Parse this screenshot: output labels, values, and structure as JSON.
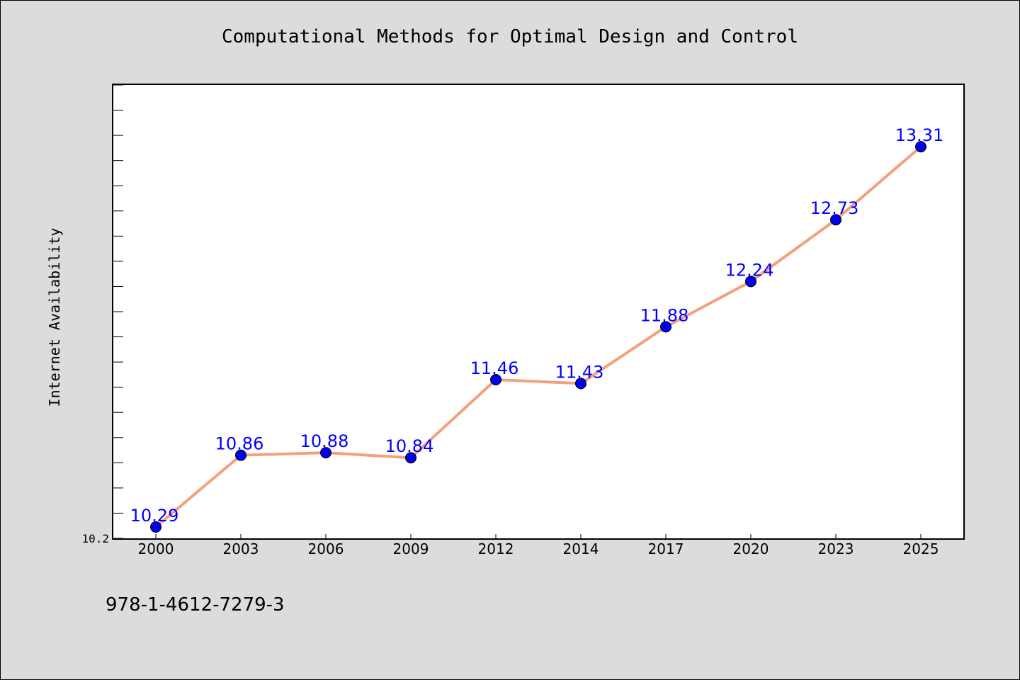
{
  "chart_data": {
    "type": "line",
    "title": "Computational Methods for Optimal Design and Control",
    "xlabel": "",
    "ylabel": "Internet Availability",
    "categories": [
      "2000",
      "2003",
      "2006",
      "2009",
      "2012",
      "2014",
      "2017",
      "2020",
      "2023",
      "2025"
    ],
    "series": [
      {
        "values": [
          10.29,
          10.86,
          10.88,
          10.84,
          11.46,
          11.43,
          11.88,
          12.24,
          12.73,
          13.31
        ],
        "labels": [
          "10.29",
          "10.86",
          "10.88",
          "10.84",
          "11.46",
          "11.43",
          "11.88",
          "12.24",
          "12.73",
          "13.31"
        ]
      }
    ],
    "ylim": [
      10.2,
      13.8
    ],
    "y_tick_labels": [
      "10.2"
    ],
    "grid": false,
    "legend": "none"
  },
  "footer": {
    "text": "978-1-4612-7279-3"
  },
  "colors": {
    "line": "#f4a07c",
    "marker": "#0000ee",
    "data_label": "#0000ff",
    "background": "#dcdcdc",
    "plot_background": "#ffffff"
  }
}
